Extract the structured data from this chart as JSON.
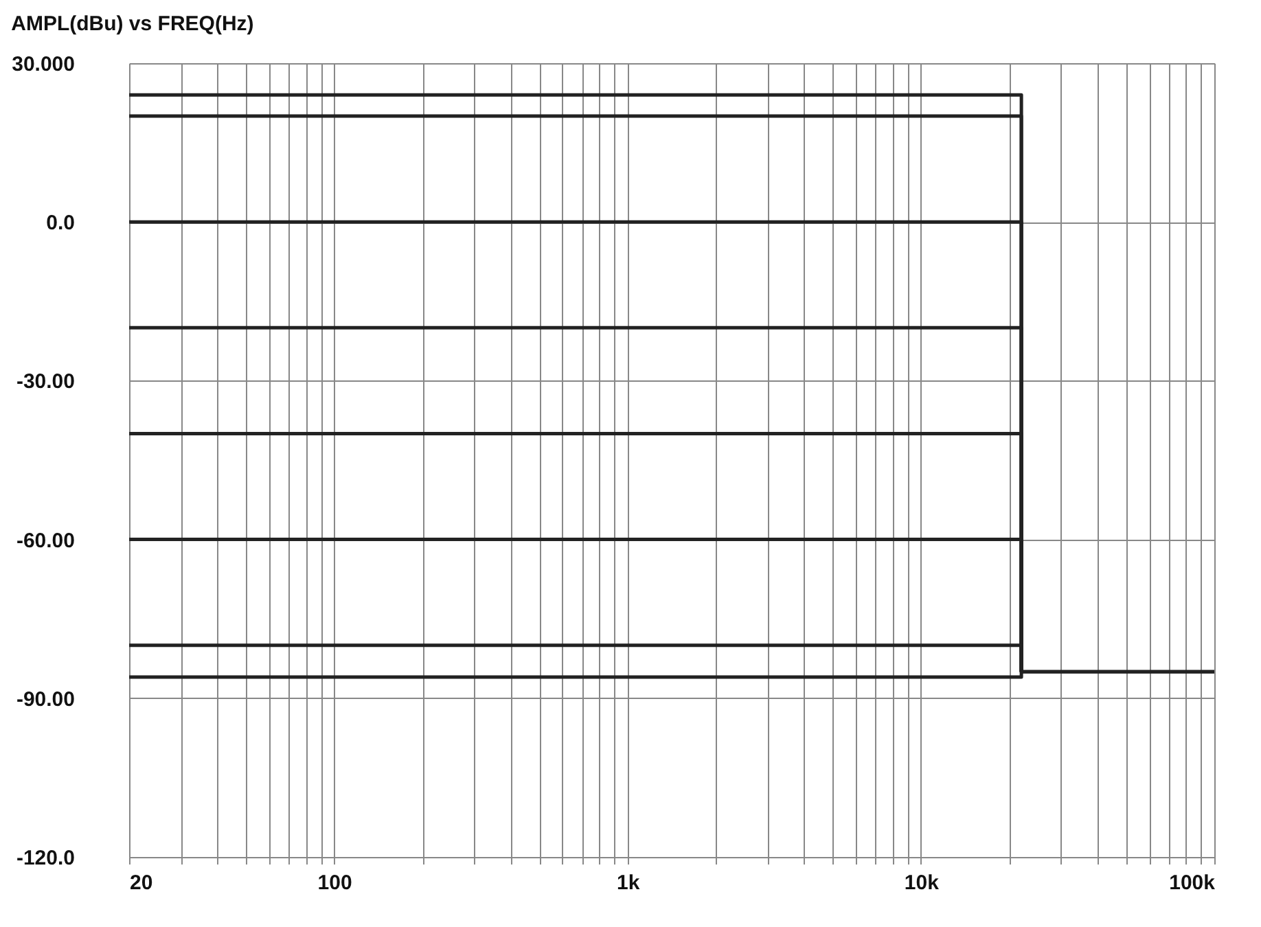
{
  "chart_data": {
    "type": "line",
    "title": "AMPL(dBu) vs FREQ(Hz)",
    "series": [
      {
        "color": "#222222",
        "x": [
          20,
          22000,
          22000,
          100000
        ],
        "values": [
          24,
          24,
          -85,
          -85
        ]
      },
      {
        "color": "#222222",
        "x": [
          20,
          22000,
          22000
        ],
        "values": [
          20,
          20,
          -85
        ]
      },
      {
        "color": "#222222",
        "x": [
          20,
          22000,
          22000
        ],
        "values": [
          0,
          0,
          -85
        ]
      },
      {
        "color": "#222222",
        "x": [
          20,
          22000,
          22000
        ],
        "values": [
          -20,
          -20,
          -85
        ]
      },
      {
        "color": "#222222",
        "x": [
          20,
          22000,
          22000
        ],
        "values": [
          -40,
          -40,
          -85
        ]
      },
      {
        "color": "#222222",
        "x": [
          20,
          22000,
          22000
        ],
        "values": [
          -60,
          -60,
          -85
        ]
      },
      {
        "color": "#222222",
        "x": [
          20,
          22000,
          22000
        ],
        "values": [
          -80,
          -80,
          -85
        ]
      },
      {
        "color": "#222222",
        "x": [
          20,
          22000,
          22000,
          100000
        ],
        "values": [
          -86,
          -86,
          -85,
          -85
        ]
      }
    ],
    "log": "x",
    "xlim": [
      20,
      100000
    ],
    "ylim": [
      -120,
      30
    ],
    "xticks": [
      20,
      {
        "value": 30,
        "label": null
      },
      {
        "value": 40,
        "label": null
      },
      {
        "value": 50,
        "label": null
      },
      {
        "value": 60,
        "label": null
      },
      {
        "value": 70,
        "label": null
      },
      {
        "value": 80,
        "label": null
      },
      {
        "value": 90,
        "label": null
      },
      100,
      {
        "value": 200,
        "label": null
      },
      {
        "value": 300,
        "label": null
      },
      {
        "value": 400,
        "label": null
      },
      {
        "value": 500,
        "label": null
      },
      {
        "value": 600,
        "label": null
      },
      {
        "value": 700,
        "label": null
      },
      {
        "value": 800,
        "label": null
      },
      {
        "value": 900,
        "label": null
      },
      {
        "value": 1000,
        "label": "1k"
      },
      {
        "value": 2000,
        "label": null
      },
      {
        "value": 3000,
        "label": null
      },
      {
        "value": 4000,
        "label": null
      },
      {
        "value": 5000,
        "label": null
      },
      {
        "value": 6000,
        "label": null
      },
      {
        "value": 7000,
        "label": null
      },
      {
        "value": 8000,
        "label": null
      },
      {
        "value": 9000,
        "label": null
      },
      {
        "value": 10000,
        "label": "10k"
      },
      {
        "value": 20000,
        "label": null
      },
      {
        "value": 30000,
        "label": null
      },
      {
        "value": 40000,
        "label": null
      },
      {
        "value": 50000,
        "label": null
      },
      {
        "value": 60000,
        "label": null
      },
      {
        "value": 70000,
        "label": null
      },
      {
        "value": 80000,
        "label": null
      },
      {
        "value": 90000,
        "label": null
      },
      {
        "value": 100000,
        "label": "100k"
      }
    ],
    "yticks": [
      {
        "value": 30,
        "label": "30.000"
      },
      {
        "value": 0,
        "label": "0.0"
      },
      {
        "value": -30,
        "label": "-30.00"
      },
      {
        "value": -60,
        "label": "-60.00"
      },
      {
        "value": -90,
        "label": "-90.00"
      },
      {
        "value": -120,
        "label": "-120.0"
      }
    ],
    "grid": true,
    "legend": false,
    "marker": "none",
    "line_style": "solid"
  }
}
